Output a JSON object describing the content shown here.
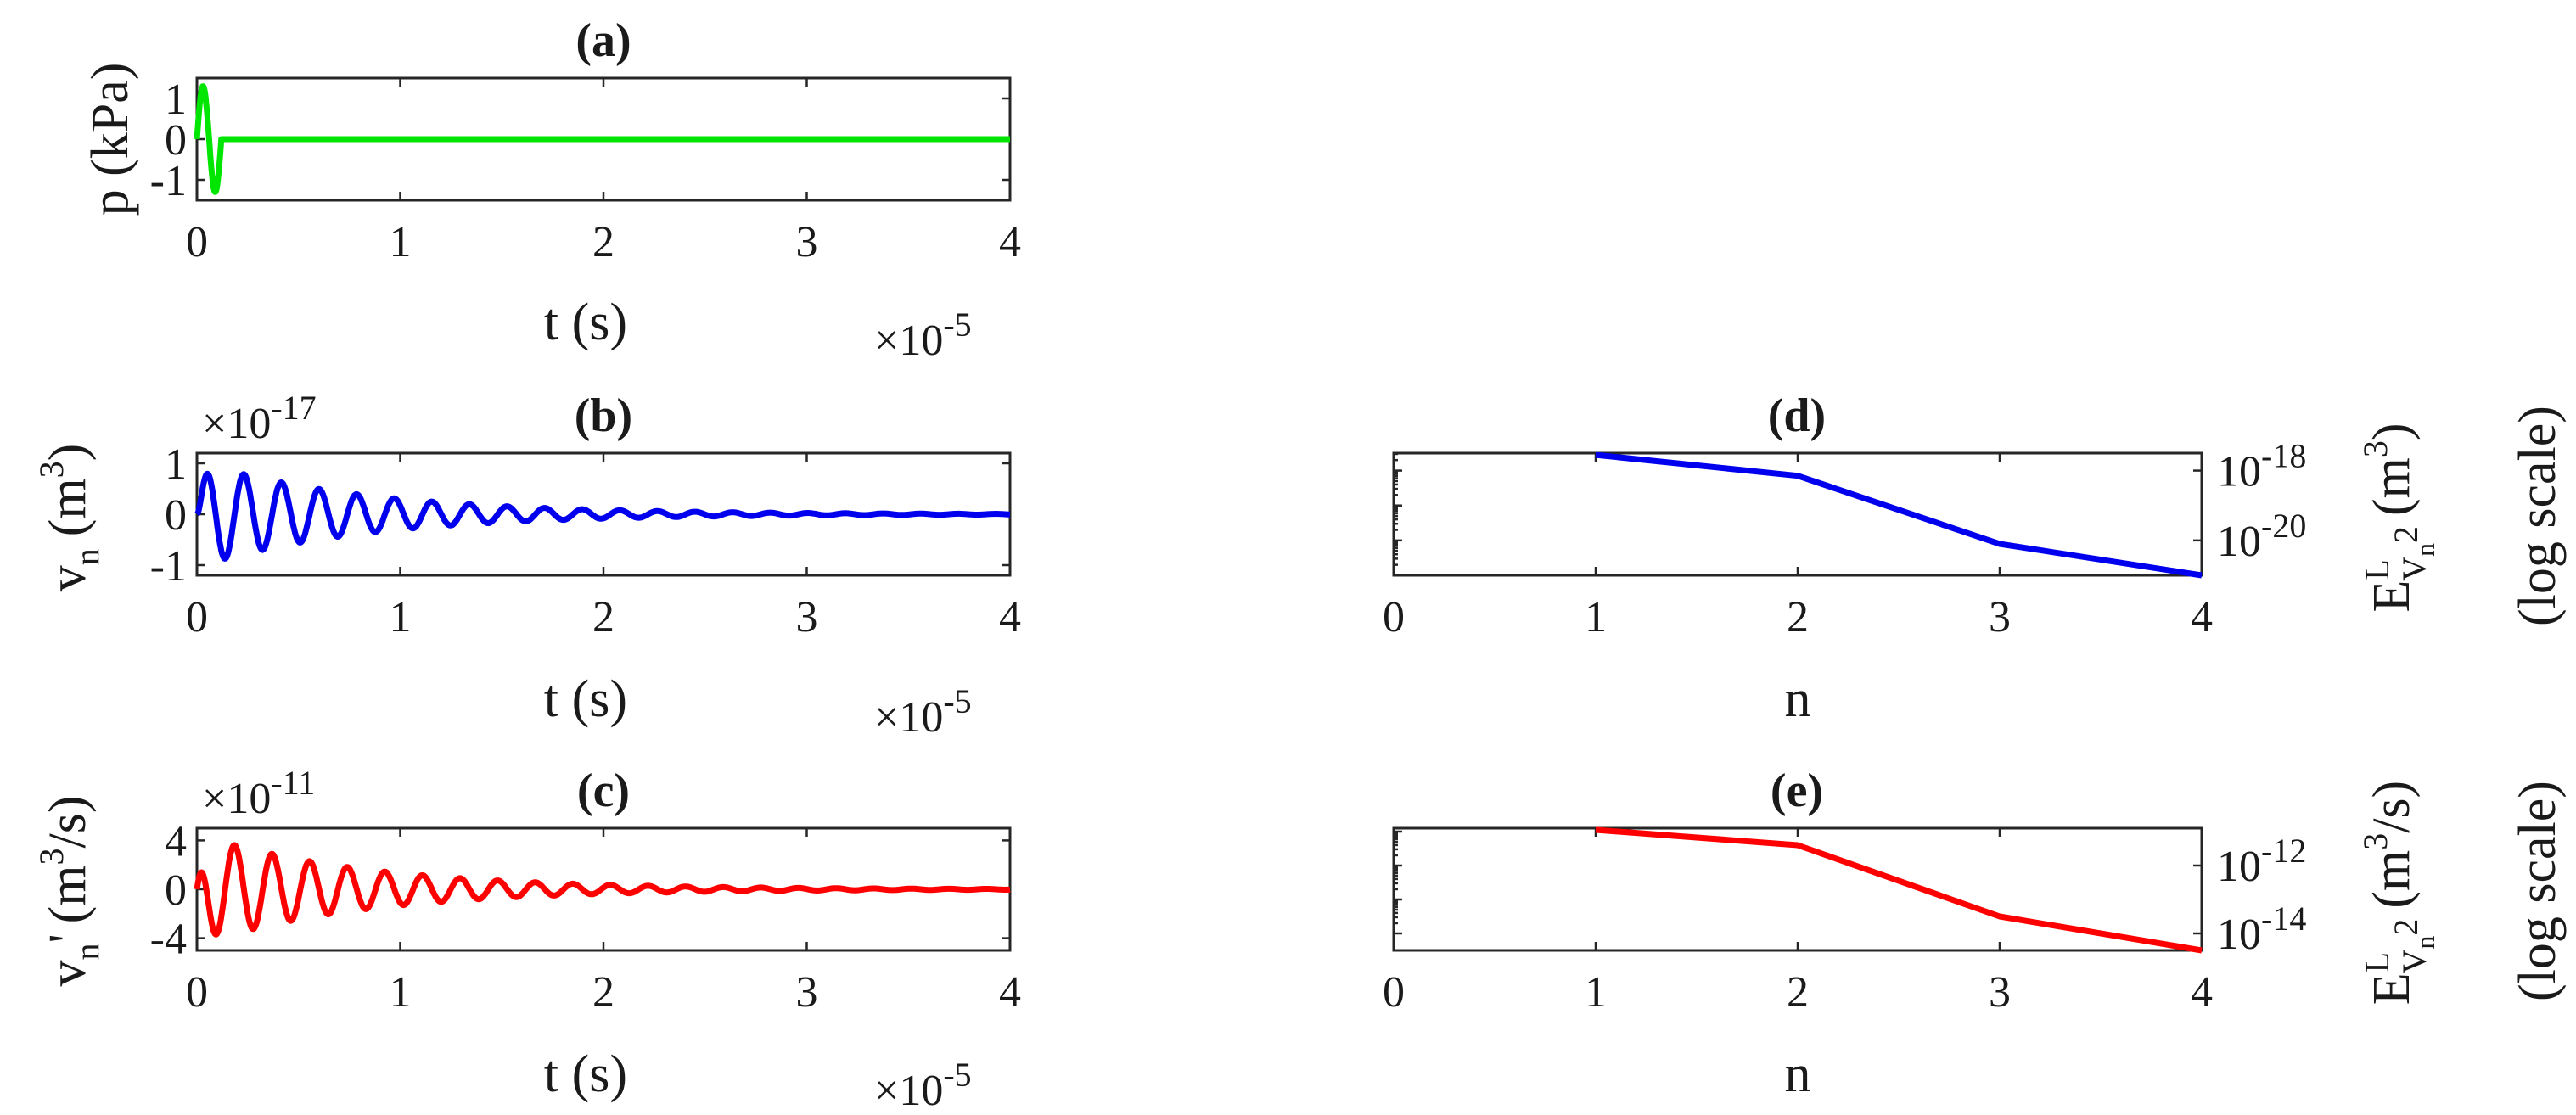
{
  "chart_data": [
    {
      "panel": "a",
      "type": "line",
      "title": "(a)",
      "xlabel": "t (s)",
      "x_multiplier": "×10",
      "x_multiplier_exp": "-5",
      "ylabel": "p (kPa)",
      "xlim": [
        0,
        4
      ],
      "ylim": [
        -1.5,
        1.5
      ],
      "xticks": [
        "0",
        "1",
        "2",
        "3",
        "4"
      ],
      "yticks": [
        {
          "value": 1,
          "label": "1"
        },
        {
          "value": 0,
          "label": "0"
        },
        {
          "value": -1,
          "label": "-1"
        }
      ],
      "series": [
        {
          "color": "#00e600",
          "signal": "pulse",
          "amplitude": 1.3,
          "period": 0.12
        }
      ]
    },
    {
      "panel": "b",
      "type": "line",
      "title": "(b)",
      "xlabel": "t (s)",
      "x_multiplier": "×10",
      "x_multiplier_exp": "-5",
      "ylabel_main": "v",
      "ylabel_sub": "n",
      "ylabel_unit": "(m",
      "ylabel_unit_exp": "3",
      "ylabel_unit_close": ")",
      "y_multiplier": "×10",
      "y_multiplier_exp": "-17",
      "xlim": [
        0,
        4
      ],
      "ylim": [
        -1.2,
        1.2
      ],
      "xticks": [
        "0",
        "1",
        "2",
        "3",
        "4"
      ],
      "yticks": [
        {
          "value": 1,
          "label": "1"
        },
        {
          "value": 0,
          "label": "0"
        },
        {
          "value": -1,
          "label": "-1"
        }
      ],
      "series": [
        {
          "color": "#0000ee",
          "signal": "damped",
          "amplitude": 1.05,
          "period": 0.185,
          "decay": 1.25,
          "rise": 0.03
        }
      ]
    },
    {
      "panel": "c",
      "type": "line",
      "title": "(c)",
      "xlabel": "t (s)",
      "x_multiplier": "×10",
      "x_multiplier_exp": "-5",
      "ylabel_main": "v",
      "ylabel_sub": "n",
      "ylabel_prime": "'",
      "ylabel_unit": "(m",
      "ylabel_unit_exp": "3",
      "ylabel_unit_close": "/s)",
      "y_multiplier": "×10",
      "y_multiplier_exp": "-11",
      "xlim": [
        0,
        4
      ],
      "ylim": [
        -5,
        5
      ],
      "xticks": [
        "0",
        "1",
        "2",
        "3",
        "4"
      ],
      "yticks": [
        {
          "value": 4,
          "label": "4"
        },
        {
          "value": 0,
          "label": "0"
        },
        {
          "value": -4,
          "label": "-4"
        }
      ],
      "series": [
        {
          "color": "#ff0000",
          "signal": "damped",
          "amplitude": 4.6,
          "period": 0.185,
          "decay": 1.25,
          "rise": 0.04,
          "phase": 1.57
        }
      ]
    },
    {
      "panel": "d",
      "type": "line",
      "title": "(d)",
      "xlabel": "n",
      "yscale": "log",
      "ylabel_main": "E",
      "ylabel_sup": "L",
      "ylabel_sub1": "V",
      "ylabel_sub2": "n",
      "ylabel_sub3": "2",
      "ylabel_unit": "(m",
      "ylabel_unit_exp": "3",
      "ylabel_unit_close": ")",
      "ylabel_note": "(log scale)",
      "xlim": [
        0,
        4
      ],
      "ylim_exp": [
        -21,
        -17.5
      ],
      "xticks": [
        "0",
        "1",
        "2",
        "3",
        "4"
      ],
      "yticks": [
        {
          "exp": -18,
          "label": "10",
          "sup": "-18"
        },
        {
          "exp": -20,
          "label": "10",
          "sup": "-20"
        }
      ],
      "x": [
        1,
        2,
        3,
        4
      ],
      "y_exp": [
        -17.55,
        -18.15,
        -20.1,
        -21.0
      ],
      "color": "#0000ee"
    },
    {
      "panel": "e",
      "type": "line",
      "title": "(e)",
      "xlabel": "n",
      "yscale": "log",
      "ylabel_main": "E",
      "ylabel_sup": "L",
      "ylabel_sub1": "V",
      "ylabel_sub2": "n",
      "ylabel_sub3": "2",
      "ylabel_unit": "(m",
      "ylabel_unit_exp": "3",
      "ylabel_unit_close": "/s)",
      "ylabel_note": "(log scale)",
      "xlim": [
        0,
        4
      ],
      "ylim_exp": [
        -14.5,
        -10.9
      ],
      "xticks": [
        "0",
        "1",
        "2",
        "3",
        "4"
      ],
      "yticks": [
        {
          "exp": -12,
          "label": "10",
          "sup": "-12"
        },
        {
          "exp": -14,
          "label": "10",
          "sup": "-14"
        }
      ],
      "x": [
        1,
        2,
        3,
        4
      ],
      "y_exp": [
        -10.95,
        -11.4,
        -13.5,
        -14.5
      ],
      "color": "#ff0000"
    }
  ]
}
